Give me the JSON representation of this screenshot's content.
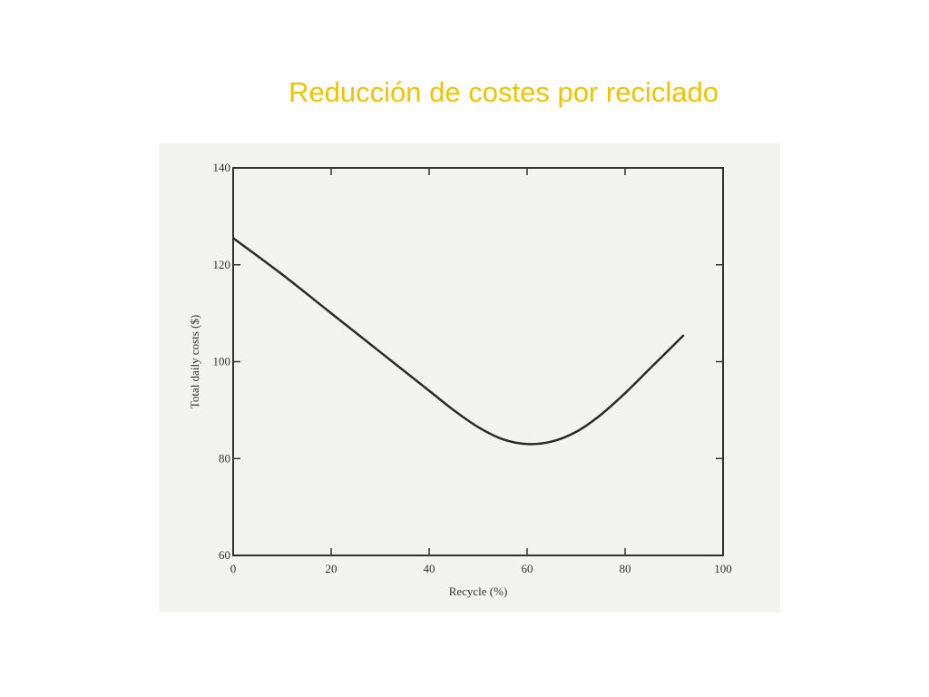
{
  "slide": {
    "title": "Reducción de costes por reciclado",
    "title_color": "#f2c200"
  },
  "chart_data": {
    "type": "line",
    "title": "",
    "xlabel": "Recycle (%)",
    "ylabel": "Total daily costs ($)",
    "xlim": [
      0,
      100
    ],
    "ylim": [
      60,
      140
    ],
    "xticks": [
      0,
      20,
      40,
      60,
      80,
      100
    ],
    "yticks": [
      60,
      80,
      100,
      120,
      140
    ],
    "grid": false,
    "series": [
      {
        "x": [
          0,
          10,
          20,
          30,
          40,
          45,
          50,
          55,
          60,
          65,
          70,
          75,
          80,
          85,
          92
        ],
        "y": [
          125.5,
          118,
          110,
          102,
          94,
          90,
          86.5,
          84,
          83,
          83.5,
          85.5,
          89,
          93.5,
          98.5,
          105.5
        ],
        "color": "#2a2a2a"
      }
    ]
  }
}
